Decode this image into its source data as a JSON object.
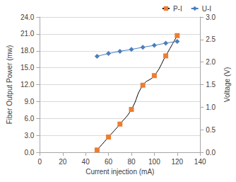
{
  "chart_data": {
    "type": "line",
    "x_label": "Current injection (mA)",
    "y_label": "Fiber Output Power (mw)",
    "y2_label": "Voltage (V)",
    "x": [
      50,
      60,
      70,
      80,
      90,
      100,
      110,
      120
    ],
    "series": [
      {
        "name": "P-I",
        "color": "#ed7d31",
        "marker": "square",
        "line_style": "smooth",
        "values": [
          0.4,
          2.7,
          5.0,
          7.6,
          11.9,
          13.6,
          17.1,
          20.7
        ]
      },
      {
        "name": "U-I",
        "color": "#4a7ebb",
        "marker": "diamond",
        "line_style": "solid",
        "axis": "y2",
        "values": [
          2.13,
          2.19,
          2.24,
          2.28,
          2.33,
          2.37,
          2.42,
          2.46
        ]
      }
    ],
    "xlim": [
      0,
      140
    ],
    "xticks": [
      0,
      20,
      40,
      60,
      80,
      100,
      120,
      140
    ],
    "ylim": [
      0,
      24
    ],
    "yticks": [
      {
        "value": 0,
        "label": "0.0"
      },
      {
        "value": 3,
        "label": "3.0"
      },
      {
        "value": 6,
        "label": "6.0"
      },
      {
        "value": 9,
        "label": "9.0"
      },
      {
        "value": 12,
        "label": "12.0"
      },
      {
        "value": 15,
        "label": "15.0"
      },
      {
        "value": 18,
        "label": "18.0"
      },
      {
        "value": 21,
        "label": "21.0"
      },
      {
        "value": 24,
        "label": "24.0"
      }
    ],
    "y2lim": [
      0,
      3
    ],
    "y2ticks": [
      {
        "value": 0,
        "label": "0.0"
      },
      0.5,
      {
        "value": 1,
        "label": "1.0"
      },
      1.5,
      {
        "value": 2,
        "label": "2.0"
      },
      2.5,
      {
        "value": 3,
        "label": "3.0"
      }
    ],
    "grid": true,
    "legend": "upper right"
  }
}
